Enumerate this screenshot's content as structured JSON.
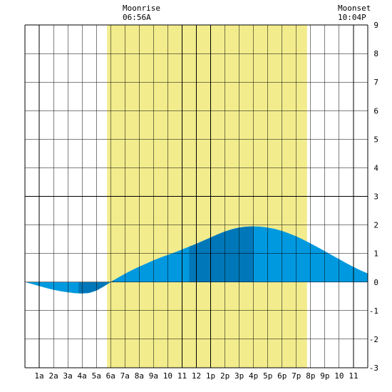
{
  "header": {
    "moonrise_label": "Moonrise",
    "moonrise_time": "06:56A",
    "moonset_label": "Moonset",
    "moonset_time": "10:04P"
  },
  "colors": {
    "daylight": "#f2ec8d",
    "tide_area": "#0099e0",
    "tide_area_dark": "#0077b8",
    "grid": "#000000",
    "background": "#ffffff"
  },
  "chart_data": {
    "type": "area",
    "title": "",
    "xlabel": "",
    "ylabel": "",
    "xlim": [
      0,
      24
    ],
    "ylim": [
      -3,
      9
    ],
    "y_ticks": [
      9,
      8,
      7,
      6,
      5,
      4,
      3,
      2,
      1,
      0,
      -1,
      -2,
      -3
    ],
    "x_tick_hours": [
      1,
      2,
      3,
      4,
      5,
      6,
      7,
      8,
      9,
      10,
      11,
      12,
      13,
      14,
      15,
      16,
      17,
      18,
      19,
      20,
      21,
      22,
      23
    ],
    "x_tick_labels": [
      "1a",
      "2a",
      "3a",
      "4a",
      "5a",
      "6a",
      "7a",
      "8a",
      "9a",
      "10",
      "11",
      "12",
      "1p",
      "2p",
      "3p",
      "4p",
      "5p",
      "6p",
      "7p",
      "8p",
      "9p",
      "10",
      "11"
    ],
    "daylight_span": [
      5.75,
      19.75
    ],
    "dark_bands": [
      [
        3.75,
        6.25
      ],
      [
        11.5,
        16.0
      ]
    ],
    "grid": true,
    "series": [
      {
        "x": [
          0,
          0.5,
          1,
          1.5,
          2,
          2.5,
          3,
          3.5,
          4,
          4.5,
          5,
          5.5,
          6,
          6.5,
          7,
          7.5,
          8,
          8.5,
          9,
          9.5,
          10,
          10.5,
          11,
          11.5,
          12,
          12.5,
          13,
          13.5,
          14,
          14.5,
          15,
          15.5,
          16,
          16.5,
          17,
          17.5,
          18,
          18.5,
          19,
          19.5,
          20,
          20.5,
          21,
          21.5,
          22,
          22.5,
          23,
          23.5,
          24
        ],
        "values": [
          0.0,
          -0.07,
          -0.14,
          -0.21,
          -0.27,
          -0.32,
          -0.36,
          -0.39,
          -0.4,
          -0.38,
          -0.3,
          -0.16,
          0.0,
          0.15,
          0.29,
          0.42,
          0.54,
          0.65,
          0.76,
          0.86,
          0.95,
          1.04,
          1.14,
          1.24,
          1.34,
          1.45,
          1.56,
          1.67,
          1.77,
          1.85,
          1.91,
          1.94,
          1.95,
          1.94,
          1.91,
          1.86,
          1.79,
          1.7,
          1.6,
          1.48,
          1.35,
          1.22,
          1.08,
          0.94,
          0.8,
          0.66,
          0.53,
          0.41,
          0.3
        ]
      }
    ]
  }
}
